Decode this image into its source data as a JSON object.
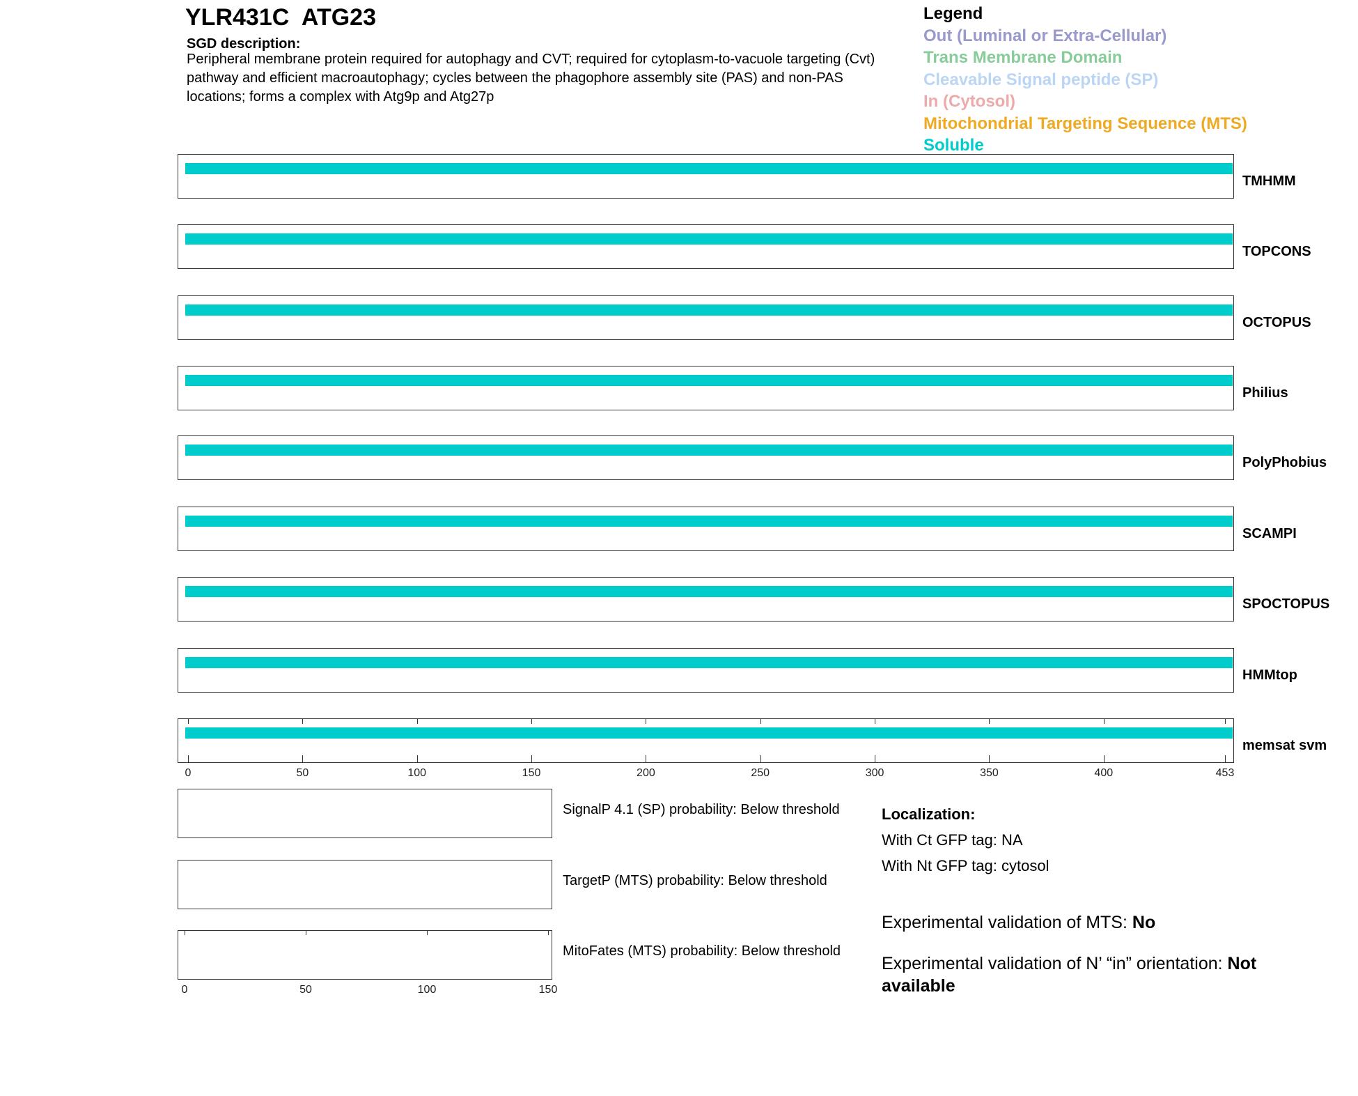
{
  "header": {
    "title": "YLR431C  ATG23",
    "sgd_heading": "SGD description:",
    "sgd_description": "Peripheral membrane protein required for autophagy and CVT; required for cytoplasm-to-vacuole targeting (Cvt) pathway and efficient macroautophagy; cycles between the phagophore assembly site (PAS) and non-PAS locations; forms a complex with Atg9p and Atg27p"
  },
  "legend": {
    "title": "Legend",
    "items": [
      {
        "label": "Out (Luminal or Extra-Cellular)",
        "color": "#9999cc"
      },
      {
        "label": "Trans Membrane Domain",
        "color": "#88cc99"
      },
      {
        "label": "Cleavable Signal peptide (SP)",
        "color": "#bbd5f5"
      },
      {
        "label": "In (Cytosol)",
        "color": "#eeaaaa"
      },
      {
        "label": "Mitochondrial Targeting Sequence (MTS)",
        "color": "#eeaa22"
      },
      {
        "label": "Soluble",
        "color": "#00cccc"
      }
    ]
  },
  "chart_data": {
    "type": "bar",
    "protein_length": 453,
    "xlim": [
      0,
      453
    ],
    "x_ticks": [
      0,
      50,
      100,
      150,
      200,
      250,
      300,
      350,
      400,
      453
    ],
    "tracks": [
      {
        "name": "TMHMM",
        "segments": [
          {
            "start": 1,
            "end": 453,
            "type": "Soluble"
          }
        ]
      },
      {
        "name": "TOPCONS",
        "segments": [
          {
            "start": 1,
            "end": 453,
            "type": "Soluble"
          }
        ]
      },
      {
        "name": "OCTOPUS",
        "segments": [
          {
            "start": 1,
            "end": 453,
            "type": "Soluble"
          }
        ]
      },
      {
        "name": "Philius",
        "segments": [
          {
            "start": 1,
            "end": 453,
            "type": "Soluble"
          }
        ]
      },
      {
        "name": "PolyPhobius",
        "segments": [
          {
            "start": 1,
            "end": 453,
            "type": "Soluble"
          }
        ]
      },
      {
        "name": "SCAMPI",
        "segments": [
          {
            "start": 1,
            "end": 453,
            "type": "Soluble"
          }
        ]
      },
      {
        "name": "SPOCTOPUS",
        "segments": [
          {
            "start": 1,
            "end": 453,
            "type": "Soluble"
          }
        ]
      },
      {
        "name": "HMMtop",
        "segments": [
          {
            "start": 1,
            "end": 453,
            "type": "Soluble"
          }
        ]
      },
      {
        "name": "memsat svm",
        "segments": [
          {
            "start": 1,
            "end": 453,
            "type": "Soluble"
          }
        ]
      }
    ],
    "probability_panels": {
      "xlim": [
        0,
        150
      ],
      "x_ticks": [
        0,
        50,
        100,
        150
      ],
      "panels": [
        {
          "label": "SignalP 4.1 (SP) probability: Below threshold"
        },
        {
          "label": "TargetP (MTS) probability: Below threshold"
        },
        {
          "label": "MitoFates (MTS) probability: Below threshold"
        }
      ]
    }
  },
  "localization": {
    "heading": "Localization:",
    "ct": "With Ct GFP tag: NA",
    "nt": "With Nt GFP tag: cytosol"
  },
  "validation": {
    "mts_label": "Experimental validation of MTS: ",
    "mts_value": "No",
    "orient_label": "Experimental validation of N’ “in” orientation: ",
    "orient_value": "Not available"
  }
}
